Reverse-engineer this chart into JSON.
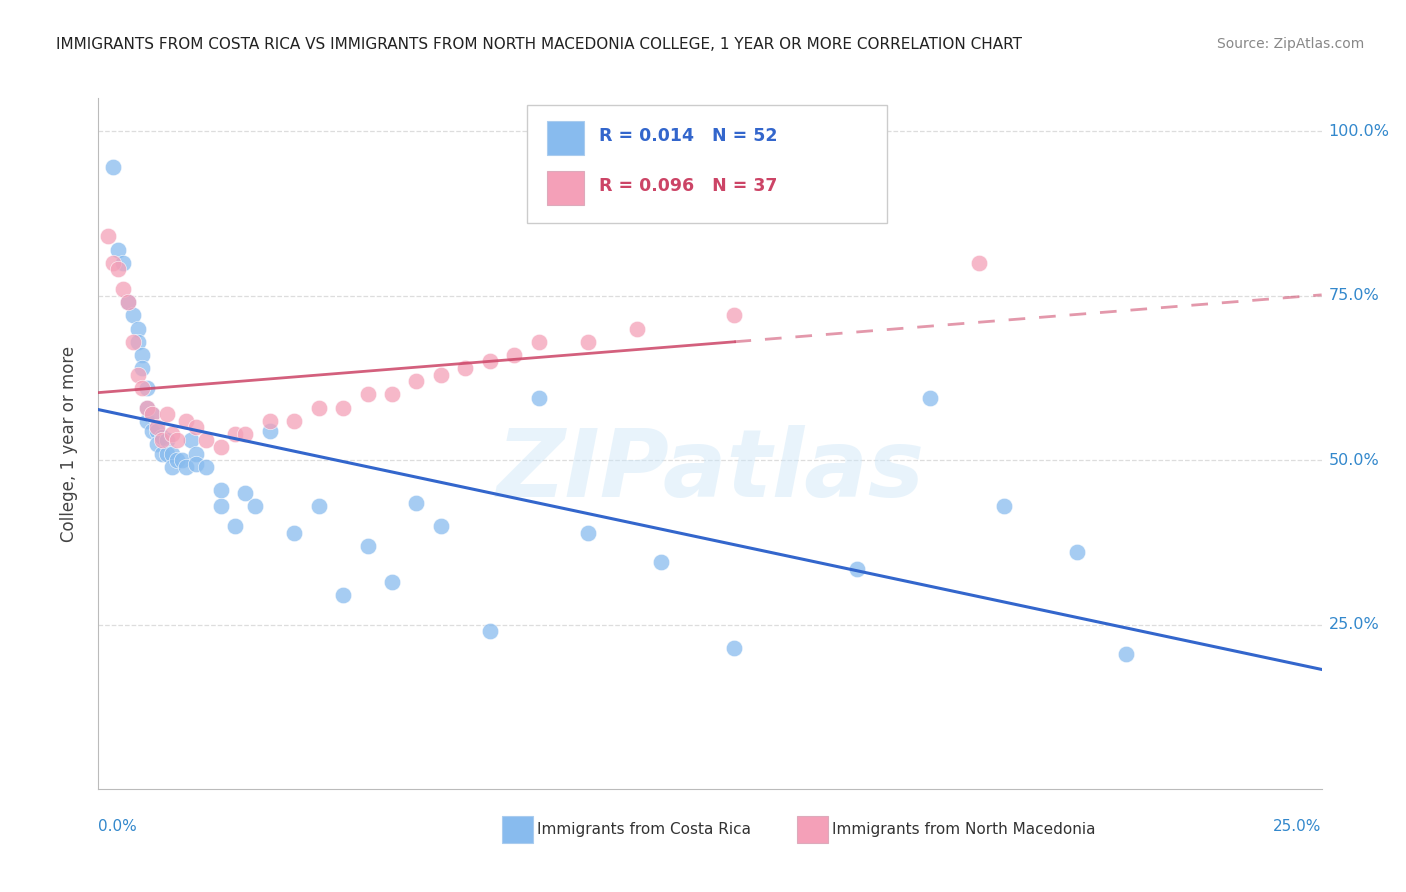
{
  "title": "IMMIGRANTS FROM COSTA RICA VS IMMIGRANTS FROM NORTH MACEDONIA COLLEGE, 1 YEAR OR MORE CORRELATION CHART",
  "source": "Source: ZipAtlas.com",
  "ylabel": "College, 1 year or more",
  "xlim": [
    0.0,
    0.25
  ],
  "ylim": [
    0.0,
    1.05
  ],
  "ytick_vals": [
    0.25,
    0.5,
    0.75,
    1.0
  ],
  "ytick_labels": [
    "25.0%",
    "50.0%",
    "75.0%",
    "100.0%"
  ],
  "color_cr": "#88bbee",
  "color_nm": "#f4a0b8",
  "trendline_cr_color": "#3366cc",
  "trendline_nm_color": "#cc4466",
  "legend_r1": "0.014",
  "legend_n1": "52",
  "legend_r2": "0.096",
  "legend_n2": "37",
  "watermark": "ZIPatlas",
  "cr_x": [
    0.003,
    0.004,
    0.005,
    0.006,
    0.007,
    0.008,
    0.008,
    0.009,
    0.009,
    0.01,
    0.01,
    0.01,
    0.011,
    0.011,
    0.012,
    0.012,
    0.013,
    0.013,
    0.014,
    0.014,
    0.015,
    0.015,
    0.016,
    0.017,
    0.018,
    0.019,
    0.02,
    0.02,
    0.022,
    0.025,
    0.025,
    0.028,
    0.03,
    0.032,
    0.035,
    0.04,
    0.045,
    0.05,
    0.055,
    0.06,
    0.065,
    0.07,
    0.08,
    0.09,
    0.1,
    0.115,
    0.13,
    0.155,
    0.17,
    0.185,
    0.2,
    0.21
  ],
  "cr_y": [
    0.945,
    0.82,
    0.8,
    0.74,
    0.72,
    0.7,
    0.68,
    0.66,
    0.64,
    0.61,
    0.58,
    0.56,
    0.57,
    0.545,
    0.545,
    0.525,
    0.535,
    0.51,
    0.53,
    0.51,
    0.51,
    0.49,
    0.5,
    0.5,
    0.49,
    0.53,
    0.51,
    0.495,
    0.49,
    0.455,
    0.43,
    0.4,
    0.45,
    0.43,
    0.545,
    0.39,
    0.43,
    0.295,
    0.37,
    0.315,
    0.435,
    0.4,
    0.24,
    0.595,
    0.39,
    0.345,
    0.215,
    0.335,
    0.595,
    0.43,
    0.36,
    0.205
  ],
  "nm_x": [
    0.002,
    0.003,
    0.004,
    0.005,
    0.006,
    0.007,
    0.008,
    0.009,
    0.01,
    0.011,
    0.012,
    0.013,
    0.014,
    0.015,
    0.016,
    0.018,
    0.02,
    0.022,
    0.025,
    0.028,
    0.03,
    0.035,
    0.04,
    0.045,
    0.05,
    0.055,
    0.06,
    0.065,
    0.07,
    0.075,
    0.08,
    0.085,
    0.09,
    0.1,
    0.11,
    0.13,
    0.18
  ],
  "nm_y": [
    0.84,
    0.8,
    0.79,
    0.76,
    0.74,
    0.68,
    0.63,
    0.61,
    0.58,
    0.57,
    0.55,
    0.53,
    0.57,
    0.54,
    0.53,
    0.56,
    0.55,
    0.53,
    0.52,
    0.54,
    0.54,
    0.56,
    0.56,
    0.58,
    0.58,
    0.6,
    0.6,
    0.62,
    0.63,
    0.64,
    0.65,
    0.66,
    0.68,
    0.68,
    0.7,
    0.72,
    0.8
  ]
}
